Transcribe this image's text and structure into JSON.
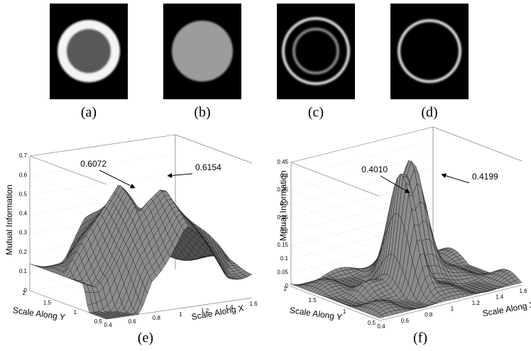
{
  "images": [
    {
      "caption": "(a)"
    },
    {
      "caption": "(b)"
    },
    {
      "caption": "(c)"
    },
    {
      "caption": "(d)"
    }
  ],
  "plots": [
    {
      "caption": "(e)",
      "z_label": "Mutual Information",
      "x_label": "Scale Along X",
      "y_label": "Scale Along Y",
      "z_ticks": [
        "0",
        "0.1",
        "0.2",
        "0.3",
        "0.4",
        "0.5",
        "0.6",
        "0.7"
      ],
      "x_ticks": [
        "0.4",
        "0.6",
        "0.8",
        "1",
        "1.2",
        "1.4",
        "1.6"
      ],
      "y_ticks": [
        "0.5",
        "1",
        "1.5",
        "2"
      ],
      "annotations": [
        "0.6072",
        "0.6154"
      ]
    },
    {
      "caption": "(f)",
      "z_label": "Mutual Information",
      "x_label": "Scale Along X",
      "y_label": "Scale Along Y",
      "z_ticks": [
        "0",
        "0.05",
        "0.1",
        "0.15",
        "0.2",
        "0.25",
        "0.3",
        "0.35",
        "0.4",
        "0.45"
      ],
      "x_ticks": [
        "0.4",
        "0.6",
        "0.8",
        "1",
        "1.2",
        "1.4",
        "1.6"
      ],
      "y_ticks": [
        "0.5",
        "1",
        "1.5",
        "2"
      ],
      "annotations": [
        "0.4010",
        "0.4199"
      ]
    }
  ]
}
